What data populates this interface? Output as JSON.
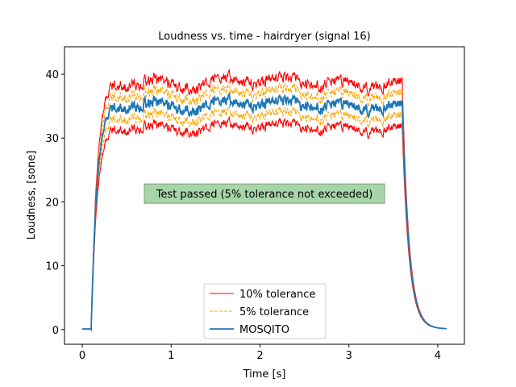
{
  "chart_data": {
    "type": "line",
    "title": "Loudness vs. time - hairdryer (signal 16)",
    "xlabel": "Time [s]",
    "ylabel": "Loudness, [sone]",
    "xlim": [
      -0.2,
      4.3
    ],
    "ylim": [
      -2.3,
      44.3
    ],
    "xticks": [
      0,
      1,
      2,
      3,
      4
    ],
    "yticks": [
      0,
      10,
      20,
      30,
      40
    ],
    "grid": false,
    "legend_position": "lower-center",
    "annotation": "Test passed (5% tolerance not exceeded)",
    "annotation_position": [
      2.05,
      21.3
    ],
    "profile": {
      "onset_time": 0.1,
      "rise_end_time": 0.45,
      "steady_value": 35.5,
      "offset_time": 3.6,
      "end_time": 4.1,
      "initial_value": 0.1
    },
    "series": [
      {
        "name": "10% tolerance",
        "role": "upper",
        "factor": 1.1,
        "color": "#ff0000",
        "style": "solid"
      },
      {
        "name": "10% tolerance",
        "role": "lower",
        "factor": 0.9,
        "color": "#ff0000",
        "style": "solid"
      },
      {
        "name": "5% tolerance",
        "role": "upper",
        "factor": 1.05,
        "color": "#ffa500",
        "style": "dashed"
      },
      {
        "name": "5% tolerance",
        "role": "lower",
        "factor": 0.95,
        "color": "#ffa500",
        "style": "dashed"
      },
      {
        "name": "MOSQITO",
        "role": "main",
        "factor": 1.0,
        "color": "#1f77b4",
        "style": "solid"
      }
    ],
    "legend": [
      {
        "label": "10% tolerance",
        "color": "#ff0000",
        "style": "solid"
      },
      {
        "label": "5% tolerance",
        "color": "#ffa500",
        "style": "dashed"
      },
      {
        "label": "MOSQITO",
        "color": "#1f77b4",
        "style": "solid"
      }
    ],
    "annotation_color": "#a8d5a8"
  }
}
